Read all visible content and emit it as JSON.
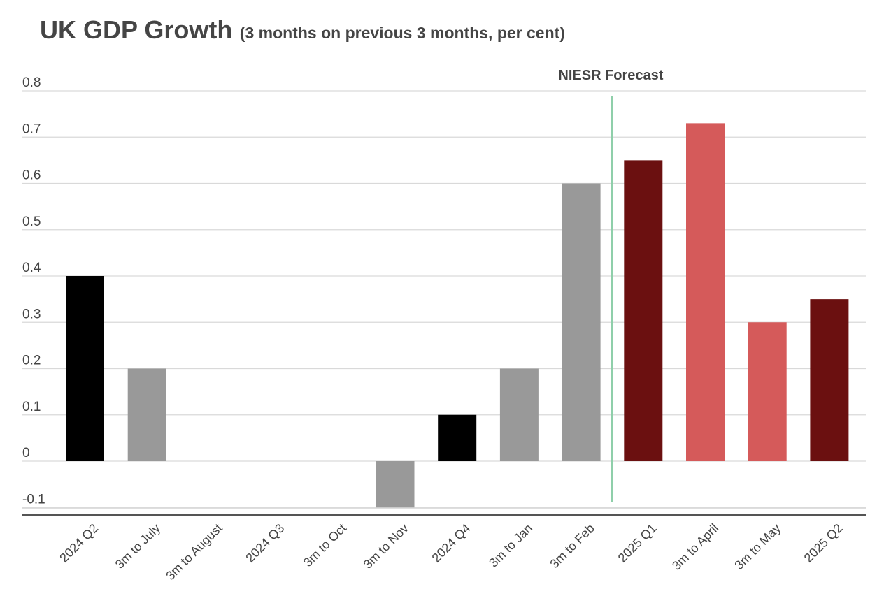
{
  "chart_data": {
    "type": "bar",
    "title": "UK GDP Growth",
    "subtitle": "(3 months on previous 3 months, per cent)",
    "categories": [
      "2024 Q2",
      "3m to July",
      "3m to August",
      "2024 Q3",
      "3m to Oct",
      "3m to Nov",
      "2024 Q4",
      "3m to Jan",
      "3m to Feb",
      "2025 Q1",
      "3m to April",
      "3m to May",
      "2025 Q2"
    ],
    "values": [
      0.4,
      0.2,
      0.0,
      0.0,
      0.0,
      -0.1,
      0.1,
      0.2,
      0.6,
      0.65,
      0.73,
      0.3,
      0.35
    ],
    "colors": [
      "#000000",
      "#999999",
      "#999999",
      "#000000",
      "#999999",
      "#999999",
      "#000000",
      "#999999",
      "#999999",
      "#6b1010",
      "#d55a5a",
      "#d55a5a",
      "#6b1010"
    ],
    "yticks": [
      "0.8",
      "0.7",
      "0.6",
      "0.5",
      "0.4",
      "0.3",
      "0.2",
      "0.1",
      "0",
      "-0.1"
    ],
    "ylim": [
      -0.1,
      0.8
    ],
    "grid": true,
    "annotation": {
      "label": "NIESR Forecast",
      "line_color": "#8fcfaa"
    },
    "xlabel": "",
    "ylabel": ""
  }
}
